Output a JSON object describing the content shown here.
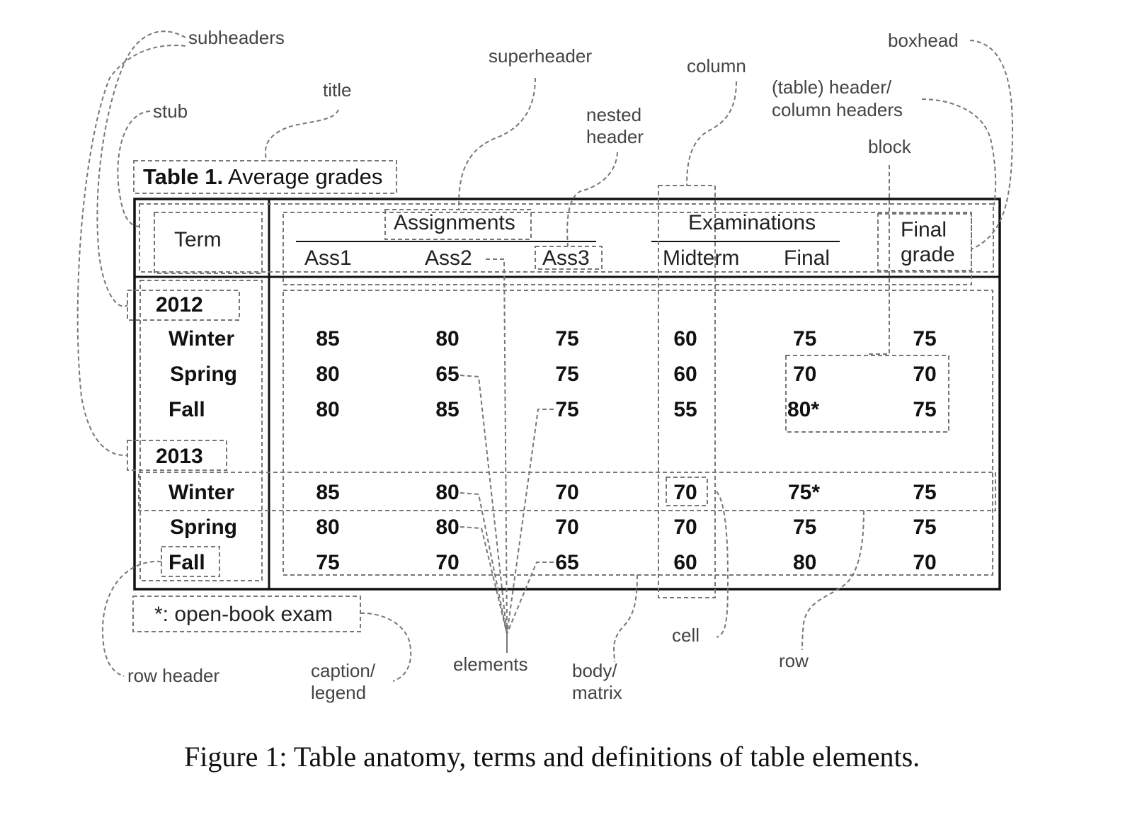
{
  "table_title": {
    "label": "Table 1.",
    "text": " Average grades"
  },
  "superheaders": {
    "assignments": "Assignments",
    "examinations": "Examinations"
  },
  "col_headers": {
    "term": "Term",
    "ass1": "Ass1",
    "ass2": "Ass2",
    "ass3": "Ass3",
    "midterm": "Midterm",
    "final": "Final",
    "final_grade_1": "Final",
    "final_grade_2": "grade"
  },
  "blocks": [
    {
      "year": "2012",
      "rows": [
        {
          "term": "Winter",
          "values": [
            "85",
            "80",
            "75",
            "60",
            "75",
            "75"
          ]
        },
        {
          "term": "Spring",
          "values": [
            "80",
            "65",
            "75",
            "60",
            "70",
            "70"
          ]
        },
        {
          "term": "Fall",
          "values": [
            "80",
            "85",
            "75",
            "55",
            "80*",
            "75"
          ]
        }
      ]
    },
    {
      "year": "2013",
      "rows": [
        {
          "term": "Winter",
          "values": [
            "85",
            "80",
            "70",
            "70",
            "75*",
            "75"
          ]
        },
        {
          "term": "Spring",
          "values": [
            "80",
            "80",
            "70",
            "70",
            "75",
            "75"
          ]
        },
        {
          "term": "Fall",
          "values": [
            "75",
            "70",
            "65",
            "60",
            "80",
            "70"
          ]
        }
      ]
    }
  ],
  "legend": "*: open-book exam",
  "annotations": {
    "subheaders": "subheaders",
    "superheader": "superheader",
    "column": "column",
    "boxhead": "boxhead",
    "title": "title",
    "stub": "stub",
    "table_header_1": "(table) header/",
    "table_header_2": "column  headers",
    "nested_header_1": "nested",
    "nested_header_2": "header",
    "block": "block",
    "row_header": "row header",
    "caption_1": "caption/",
    "caption_2": "legend",
    "elements": "elements",
    "body_1": "body/",
    "body_2": "matrix",
    "cell": "cell",
    "row": "row"
  },
  "figure_caption": "Figure 1: Table anatomy, terms and definitions of table elements.",
  "colors": {
    "annotation": "#777777",
    "table_border": "#111111",
    "text": "#111111"
  }
}
